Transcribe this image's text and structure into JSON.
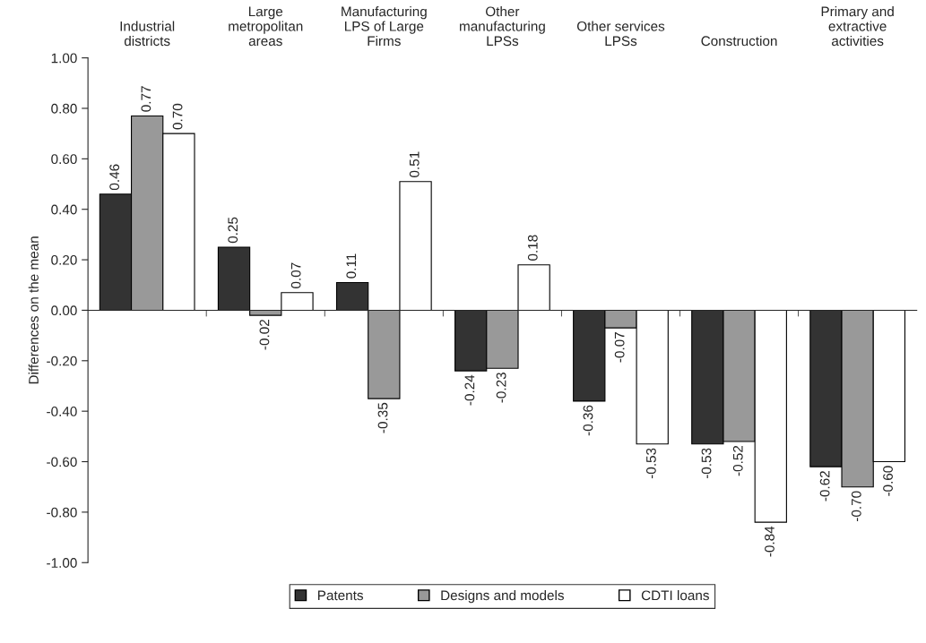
{
  "chart_data": {
    "type": "bar",
    "ylabel": "Differences on the mean",
    "categories": [
      "Industrial\ndistricts",
      "Large\nmetropolitan\nareas",
      "Manufacturing\nLPS of Large\nFirms",
      "Other\nmanufacturing\nLPSs",
      "Other services\nLPSs",
      "Construction",
      "Primary and\nextractive\nactivities"
    ],
    "series": [
      {
        "name": "Patents",
        "color": "#333333",
        "values": [
          0.46,
          0.25,
          0.11,
          -0.24,
          -0.36,
          -0.53,
          -0.62
        ],
        "value_labels": [
          "0.46",
          "0.25",
          "0.11",
          "-0.24",
          "-0.36",
          "-0.53",
          "-0.62"
        ]
      },
      {
        "name": "Designs and models",
        "color": "#999999",
        "values": [
          0.77,
          -0.02,
          -0.35,
          -0.23,
          -0.07,
          -0.52,
          -0.7
        ],
        "value_labels": [
          "0.77",
          "-0.02",
          "-0.35",
          "-0.23",
          "-0.07",
          "-0.52",
          "-0.70"
        ]
      },
      {
        "name": "CDTI loans",
        "color": "#ffffff",
        "values": [
          0.7,
          0.07,
          0.51,
          0.18,
          -0.53,
          -0.84,
          -0.6
        ],
        "value_labels": [
          "0.70",
          "0.07",
          "0.51",
          "0.18",
          "-0.53",
          "-0.84",
          "-0.60"
        ]
      }
    ],
    "ylim": [
      -1.0,
      1.0
    ],
    "yticks": [
      {
        "value": -1.0,
        "label": "-1.00"
      },
      {
        "value": -0.8,
        "label": "-0.80"
      },
      {
        "value": -0.6,
        "label": "-0.60"
      },
      {
        "value": -0.4,
        "label": "-0.40"
      },
      {
        "value": -0.2,
        "label": "-0.20"
      },
      {
        "value": 0,
        "label": "0.00"
      },
      {
        "value": 0.2,
        "label": "0.20"
      },
      {
        "value": 0.4,
        "label": "0.40"
      },
      {
        "value": 0.6,
        "label": "0.60"
      },
      {
        "value": 0.8,
        "label": "0.80"
      },
      {
        "value": 1.0,
        "label": "1.00"
      }
    ],
    "legend": "bottom"
  }
}
